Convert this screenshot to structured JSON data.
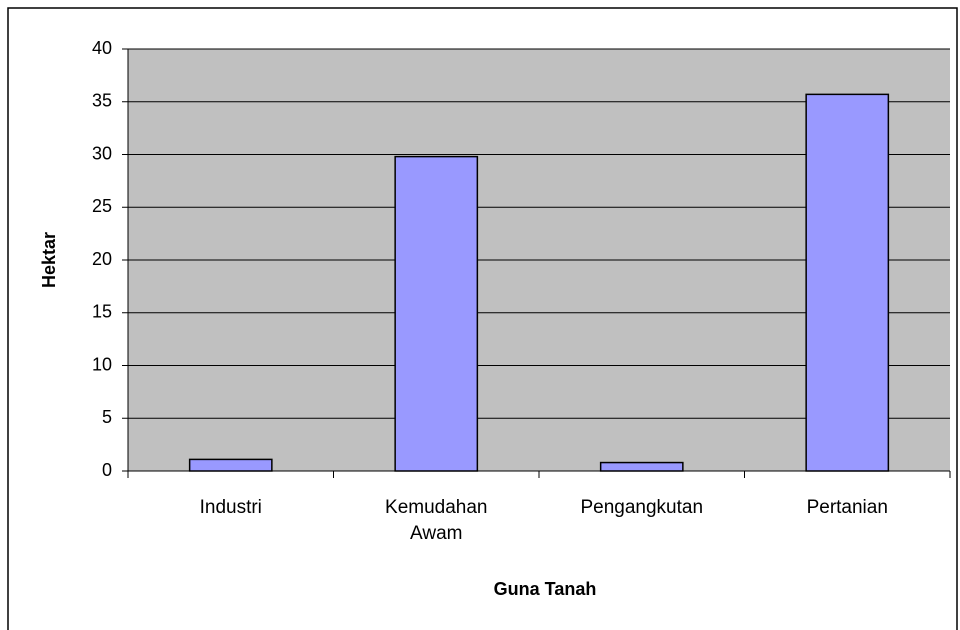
{
  "chart_data": {
    "type": "bar",
    "x_label": "Guna Tanah",
    "y_label": "Hektar",
    "categories": [
      "Industri",
      "Kemudahan Awam",
      "Pengangkutan",
      "Pertanian"
    ],
    "values": [
      1.1,
      29.8,
      0.8,
      35.7
    ],
    "color": "#9999ff",
    "ylim": [
      0,
      40
    ],
    "yticks": [
      0,
      5,
      10,
      15,
      20,
      25,
      30,
      35,
      40
    ],
    "grid": true
  }
}
